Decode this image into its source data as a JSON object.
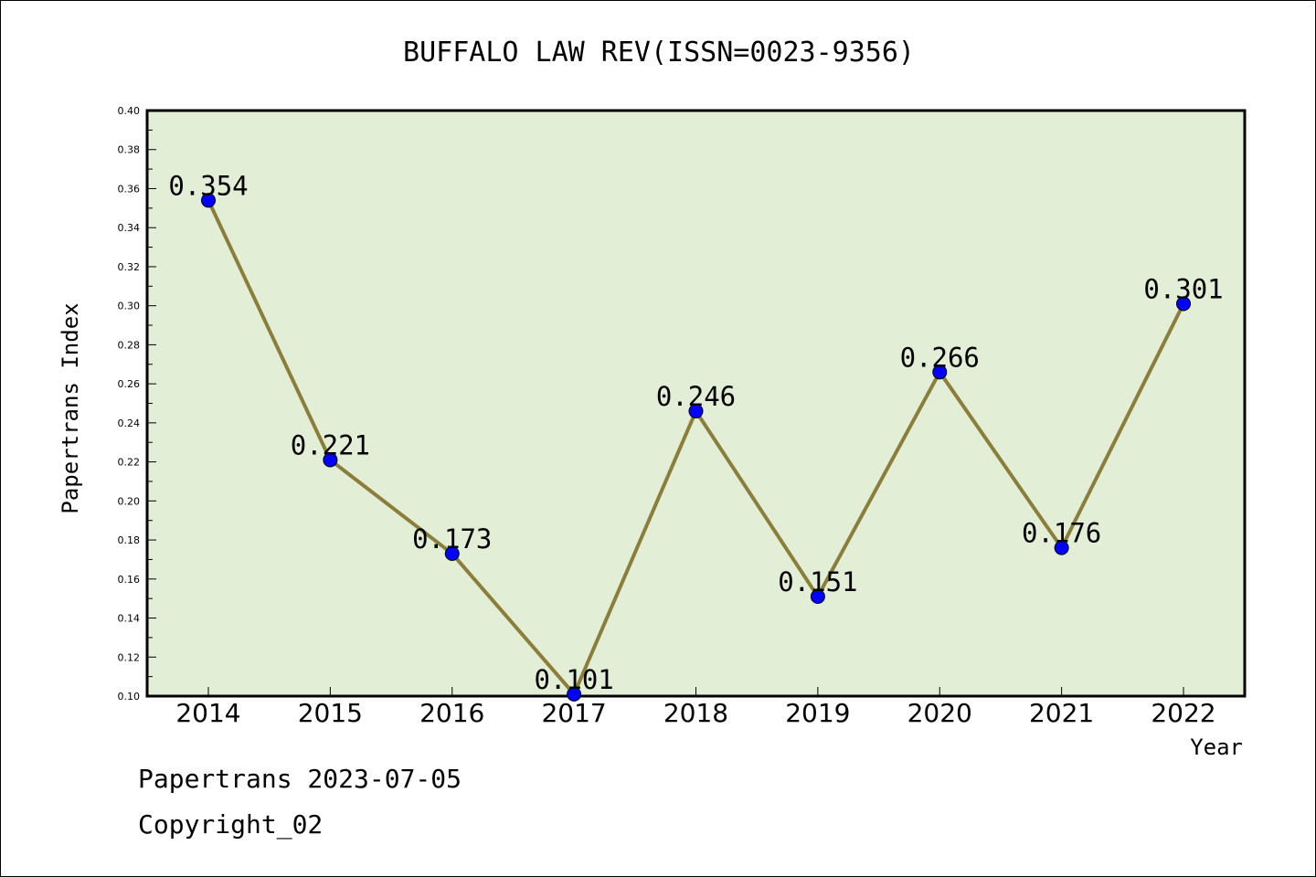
{
  "chart_data": {
    "type": "line",
    "title": "BUFFALO LAW REV(ISSN=0023-9356)",
    "xlabel": "Year",
    "ylabel": "Papertrans Index",
    "categories": [
      "2014",
      "2015",
      "2016",
      "2017",
      "2018",
      "2019",
      "2020",
      "2021",
      "2022"
    ],
    "values": [
      0.354,
      0.221,
      0.173,
      0.101,
      0.246,
      0.151,
      0.266,
      0.176,
      0.301
    ],
    "data_labels": [
      "0.354",
      "0.221",
      "0.173",
      "0.101",
      "0.246",
      "0.151",
      "0.266",
      "0.176",
      "0.301"
    ],
    "ylim": [
      0.1,
      0.4
    ],
    "yticks": [
      "0.10",
      "0.12",
      "0.14",
      "0.16",
      "0.18",
      "0.20",
      "0.22",
      "0.24",
      "0.26",
      "0.28",
      "0.30",
      "0.32",
      "0.34",
      "0.36",
      "0.38",
      "0.40"
    ],
    "grid": false,
    "colors": {
      "plot_background": "#e2efd6",
      "line": "#8b7d3a",
      "marker": "#0000ff"
    }
  },
  "footer": {
    "line1": "Papertrans 2023-07-05",
    "line2": "Copyright_02"
  }
}
